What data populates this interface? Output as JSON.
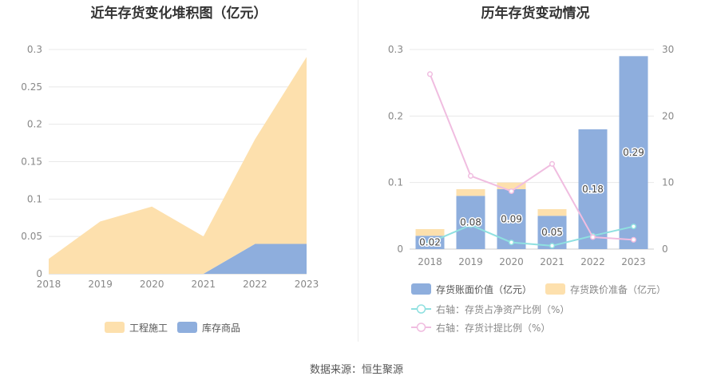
{
  "source": "数据来源：恒生聚源",
  "chart_data": [
    {
      "type": "area",
      "stacked": true,
      "title": "近年存货变化堆积图（亿元）",
      "categories": [
        "2018",
        "2019",
        "2020",
        "2021",
        "2022",
        "2023"
      ],
      "series": [
        {
          "name": "库存商品",
          "values": [
            0,
            0,
            0,
            0,
            0.04,
            0.04
          ],
          "color": "#8eaedd"
        },
        {
          "name": "工程施工",
          "values": [
            0.02,
            0.07,
            0.09,
            0.05,
            0.14,
            0.25
          ],
          "color": "#fde0ad"
        }
      ],
      "legend_order": [
        "工程施工",
        "库存商品"
      ],
      "y_ticks": [
        "0",
        "0.05",
        "0.1",
        "0.15",
        "0.2",
        "0.25",
        "0.3"
      ],
      "ylim": [
        0,
        0.3
      ],
      "grid": true,
      "legend_position": "bottom"
    },
    {
      "type": "bar",
      "stacked": true,
      "title": "历年存货变动情况",
      "categories": [
        "2018",
        "2019",
        "2020",
        "2021",
        "2022",
        "2023"
      ],
      "series": [
        {
          "name": "存货账面价值（亿元）",
          "type": "bar",
          "axis": "left",
          "values": [
            0.02,
            0.08,
            0.09,
            0.05,
            0.18,
            0.29
          ],
          "labels": [
            "0.02",
            "0.08",
            "0.09",
            "0.05",
            "0.18",
            "0.29"
          ],
          "color": "#8eaedd"
        },
        {
          "name": "存货跌价准备（亿元）",
          "type": "bar",
          "axis": "left",
          "values": [
            0.01,
            0.01,
            0.01,
            0.01,
            0,
            0
          ],
          "color": "#fde0ad"
        },
        {
          "name": "右轴：存货占净资产比例（%）",
          "type": "line",
          "axis": "right",
          "values": [
            1.0,
            3.6,
            1.0,
            0.5,
            2.0,
            3.4
          ],
          "color": "#8fe0e0"
        },
        {
          "name": "右轴：存货计提比例（%）",
          "type": "line",
          "axis": "right",
          "values": [
            26.3,
            11.0,
            8.7,
            12.8,
            1.8,
            1.4
          ],
          "color": "#f0bde0"
        }
      ],
      "left_y_ticks": [
        "0",
        "0.1",
        "0.2",
        "0.3"
      ],
      "right_y_ticks": [
        "0",
        "10",
        "20",
        "30"
      ],
      "ylim_left": [
        0,
        0.3
      ],
      "ylim_right": [
        0,
        30
      ],
      "grid": true,
      "legend_position": "bottom"
    }
  ]
}
